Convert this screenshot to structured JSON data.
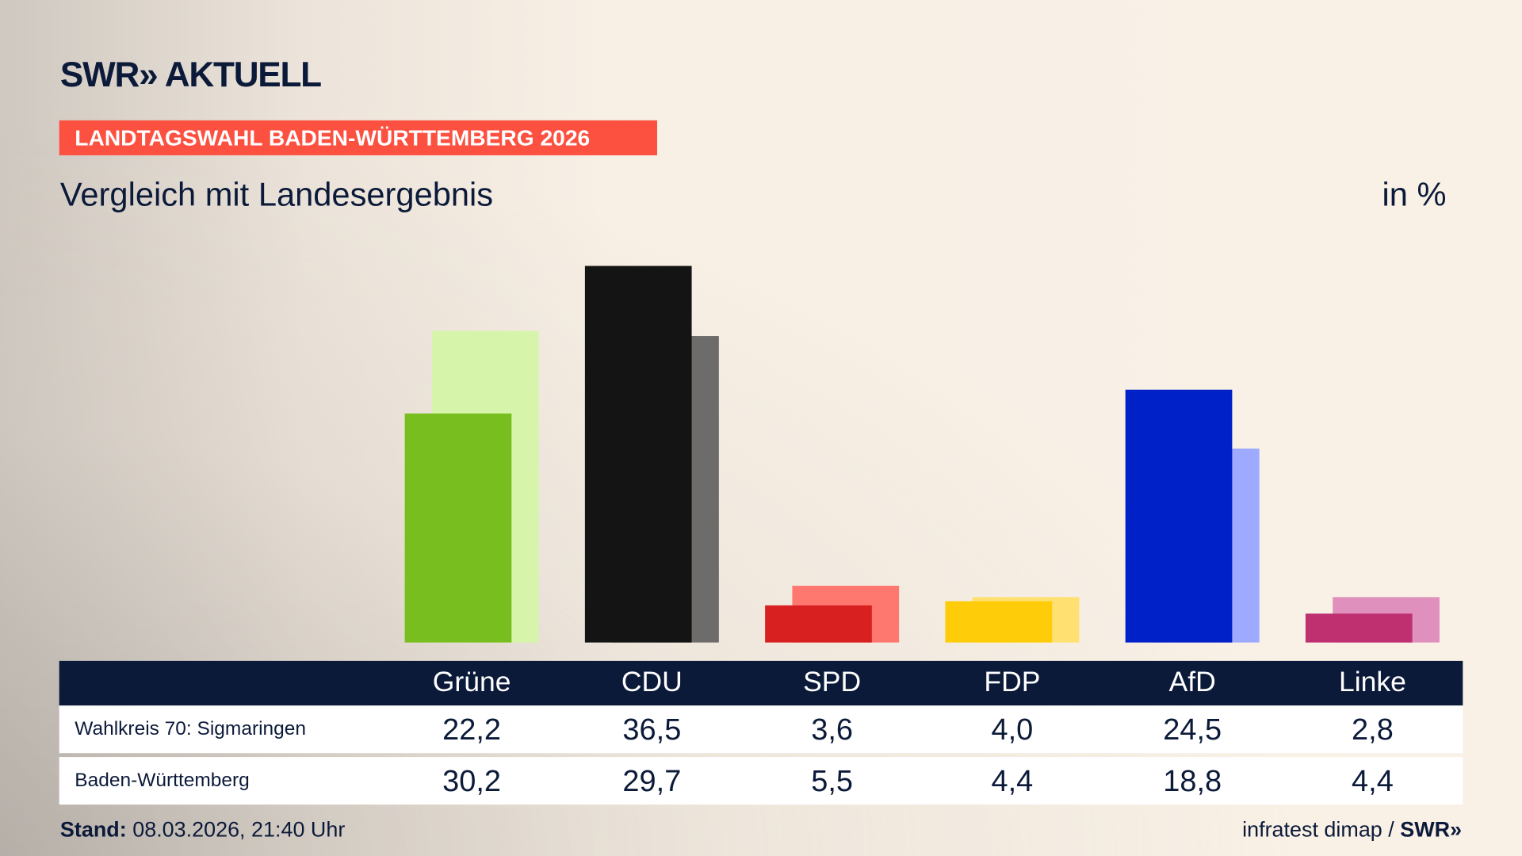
{
  "header": {
    "logo": "SWR» AKTUELL",
    "tag": "LANDTAGSWAHL BADEN-WÜRTTEMBERG 2026",
    "subtitle": "Vergleich mit Landesergebnis",
    "unit": "in %"
  },
  "footer": {
    "stand_label": "Stand:",
    "stand_value": " 08.03.2026, 21:40 Uhr",
    "source": "infratest dimap / ",
    "source_logo": "SWR»"
  },
  "chart_data": {
    "type": "bar",
    "categories": [
      "Grüne",
      "CDU",
      "SPD",
      "FDP",
      "AfD",
      "Linke"
    ],
    "series": [
      {
        "name": "Wahlkreis 70: Sigmaringen",
        "values": [
          22.2,
          36.5,
          3.6,
          4.0,
          24.5,
          2.8
        ],
        "value_labels": [
          "22,2",
          "36,5",
          "3,6",
          "4,0",
          "24,5",
          "2,8"
        ],
        "colors": [
          "#78be1e",
          "#141414",
          "#d82020",
          "#ffcc0a",
          "#0020c8",
          "#be3070"
        ]
      },
      {
        "name": "Baden-Württemberg",
        "values": [
          30.2,
          29.7,
          5.5,
          4.4,
          18.8,
          4.4
        ],
        "value_labels": [
          "30,2",
          "29,7",
          "5,5",
          "4,4",
          "18,8",
          "4,4"
        ],
        "colors": [
          "#d6f5aa",
          "#6e6c6a",
          "#ff7870",
          "#ffe070",
          "#9eaaff",
          "#e090bc"
        ]
      }
    ],
    "ylim": [
      0,
      36.5
    ]
  }
}
